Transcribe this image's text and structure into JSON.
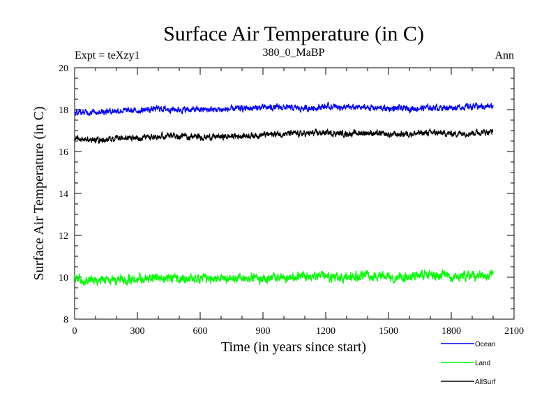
{
  "chart_data": {
    "type": "line",
    "title": "Surface Air Temperature (in C)",
    "subtitle_left": "Expt = teXzy1",
    "subtitle_center": "380_0_MaBP",
    "subtitle_right": "Ann",
    "xlabel": "Time (in years since start)",
    "ylabel": "Surface Air Temperature (in C)",
    "xlim": [
      0,
      2100
    ],
    "ylim": [
      8,
      20
    ],
    "x_major_ticks": [
      0,
      300,
      600,
      900,
      1200,
      1500,
      1800,
      2100
    ],
    "x_tick_labels": [
      "0",
      "300",
      "600",
      "900",
      "1200",
      "1500",
      "1800",
      "2100"
    ],
    "x_minor_step": 100,
    "y_major_ticks": [
      8,
      10,
      12,
      14,
      16,
      18,
      20
    ],
    "y_tick_labels": [
      "8",
      "10",
      "12",
      "14",
      "16",
      "18",
      "20"
    ],
    "y_minor_step": 0.5,
    "grid": false,
    "legend_position": "bottom-right",
    "x_range": [
      0,
      2000
    ],
    "series": [
      {
        "name": "Ocean",
        "color": "#0000ff",
        "x": [
          0,
          100,
          200,
          300,
          400,
          500,
          600,
          700,
          800,
          900,
          1000,
          1100,
          1200,
          1300,
          1400,
          1500,
          1600,
          1700,
          1800,
          1900,
          2000
        ],
        "values": [
          17.85,
          17.9,
          17.95,
          17.95,
          18.05,
          18.0,
          18.0,
          18.0,
          18.05,
          18.1,
          18.1,
          18.05,
          18.15,
          18.1,
          18.1,
          18.05,
          18.05,
          18.1,
          18.1,
          18.15,
          18.15
        ],
        "noise": 0.13
      },
      {
        "name": "Land",
        "color": "#00ff00",
        "x": [
          0,
          100,
          200,
          300,
          400,
          500,
          600,
          700,
          800,
          900,
          1000,
          1100,
          1200,
          1300,
          1400,
          1500,
          1600,
          1700,
          1800,
          1900,
          2000
        ],
        "values": [
          9.9,
          9.8,
          9.85,
          9.9,
          9.95,
          9.95,
          9.9,
          9.95,
          9.95,
          9.95,
          10.0,
          10.05,
          10.05,
          10.0,
          10.1,
          10.0,
          10.05,
          10.1,
          10.05,
          10.05,
          10.1
        ],
        "noise": 0.2
      },
      {
        "name": "AllSurf",
        "color": "#000000",
        "x": [
          0,
          100,
          200,
          300,
          400,
          500,
          600,
          700,
          800,
          900,
          1000,
          1100,
          1200,
          1300,
          1400,
          1500,
          1600,
          1700,
          1800,
          1900,
          2000
        ],
        "values": [
          16.6,
          16.55,
          16.6,
          16.65,
          16.75,
          16.75,
          16.7,
          16.7,
          16.75,
          16.8,
          16.85,
          16.85,
          16.9,
          16.85,
          16.9,
          16.8,
          16.85,
          16.9,
          16.85,
          16.9,
          16.95
        ],
        "noise": 0.13
      }
    ]
  }
}
